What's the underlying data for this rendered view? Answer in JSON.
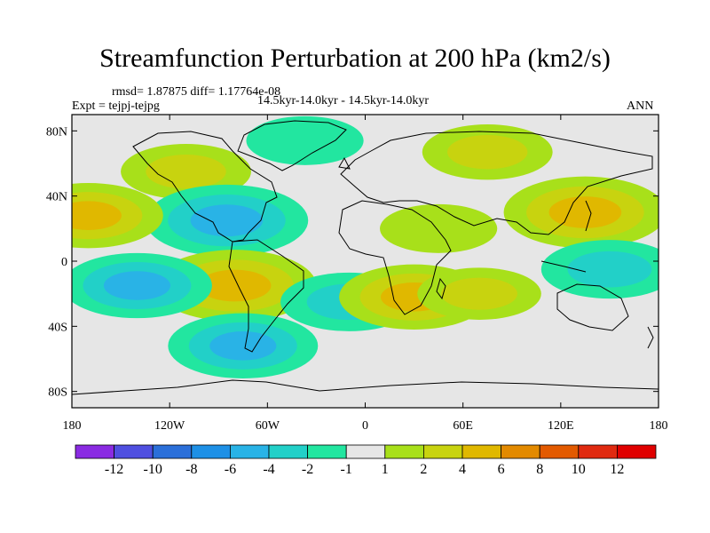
{
  "title": "Streamfunction Perturbation at 200 hPa (km2/s)",
  "header": {
    "stats": "rmsd= 1.87875 diff= 1.17764e-08",
    "period": "14.5kyr-14.0kyr - 14.5kyr-14.0kyr",
    "experiment": "Expt = tejpj-tejpg",
    "season": "ANN"
  },
  "map": {
    "projection": "cylindrical-equidistant",
    "lon_range": [
      -180,
      180
    ],
    "lat_range": [
      -90,
      90
    ],
    "lon_ticks": [
      {
        "value": -180,
        "label": "180"
      },
      {
        "value": -120,
        "label": "120W"
      },
      {
        "value": -60,
        "label": "60W"
      },
      {
        "value": 0,
        "label": "0"
      },
      {
        "value": 60,
        "label": "60E"
      },
      {
        "value": 120,
        "label": "120E"
      },
      {
        "value": 180,
        "label": "180"
      }
    ],
    "lat_ticks": [
      {
        "value": 80,
        "label": "80N"
      },
      {
        "value": 40,
        "label": "40N"
      },
      {
        "value": 0,
        "label": "0"
      },
      {
        "value": -40,
        "label": "40S"
      },
      {
        "value": -80,
        "label": "80S"
      }
    ],
    "background_color": "#e6e6e6",
    "features": [
      {
        "name": "greenland-anomaly",
        "lon": -37,
        "lat": 74,
        "value": -1.5
      },
      {
        "name": "siberia-anomaly",
        "lon": 75,
        "lat": 67,
        "value": 2.5
      },
      {
        "name": "north-atlantic-ridge",
        "lon": -110,
        "lat": 55,
        "value": 2.5
      },
      {
        "name": "north-america-trough",
        "lon": -85,
        "lat": 25,
        "value": -5
      },
      {
        "name": "east-asia-ridge",
        "lon": 135,
        "lat": 30,
        "value": 5
      },
      {
        "name": "central-pacific-ridge",
        "lon": -170,
        "lat": 28,
        "value": 4
      },
      {
        "name": "south-america-ridge",
        "lon": -80,
        "lat": -15,
        "value": 5
      },
      {
        "name": "east-pacific-trough",
        "lon": -140,
        "lat": -15,
        "value": -4
      },
      {
        "name": "south-atlantic-trough",
        "lon": -10,
        "lat": -25,
        "value": -3
      },
      {
        "name": "south-africa-ridge",
        "lon": 30,
        "lat": -22,
        "value": 4
      },
      {
        "name": "indian-ocean-ridge",
        "lon": 70,
        "lat": -20,
        "value": 2
      },
      {
        "name": "west-pacific-trough",
        "lon": 150,
        "lat": -5,
        "value": -3
      },
      {
        "name": "southern-ocean-trough",
        "lon": -75,
        "lat": -52,
        "value": -4
      },
      {
        "name": "arabia-ridge",
        "lon": 45,
        "lat": 20,
        "value": 1.5
      }
    ]
  },
  "colorbar": {
    "levels": [
      -12,
      -10,
      -8,
      -6,
      -4,
      -2,
      -1,
      1,
      2,
      4,
      6,
      8,
      10,
      12
    ],
    "labels": [
      "-12",
      "-10",
      "-8",
      "-6",
      "-4",
      "-2",
      "-1",
      "1",
      "2",
      "4",
      "6",
      "8",
      "10",
      "12"
    ],
    "colors": [
      "#8a2be2",
      "#4f4fe0",
      "#2b6fd9",
      "#1e90e6",
      "#29b3e6",
      "#22d0c8",
      "#22e6a0",
      "#e6e6e6",
      "#a8e01a",
      "#c8d30f",
      "#e0b800",
      "#e38a00",
      "#e35a00",
      "#e02a10",
      "#e00000"
    ]
  }
}
